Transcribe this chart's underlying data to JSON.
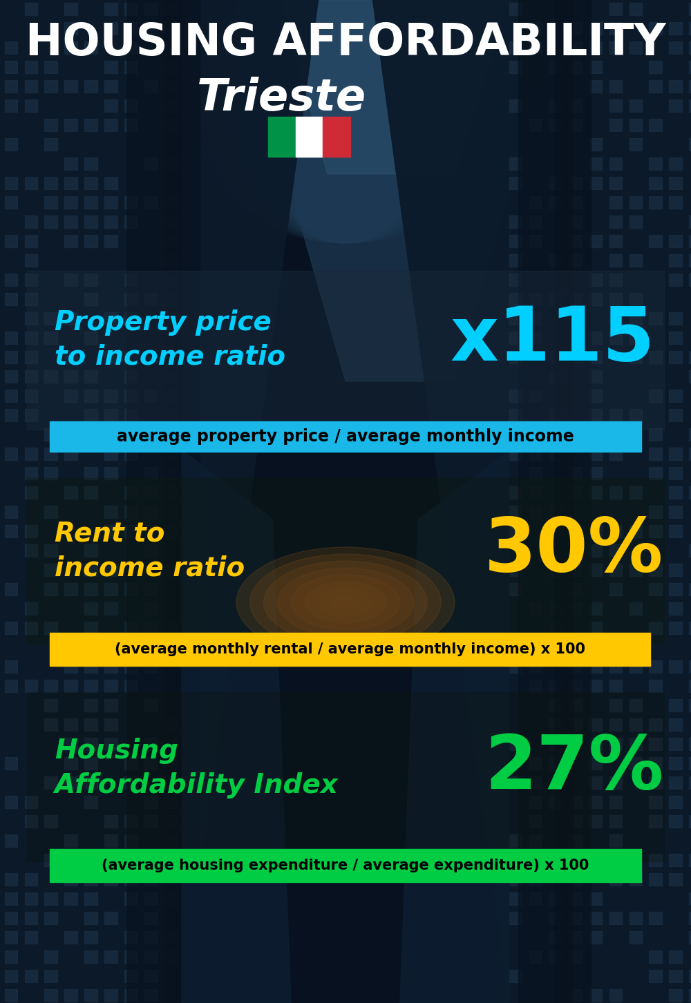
{
  "title_line1": "HOUSING AFFORDABILITY",
  "title_line2": "Trieste",
  "bg_color": "#080e18",
  "section1_label_line1": "Property price",
  "section1_label_line2": "to income ratio",
  "section1_value": "x115",
  "section1_label_color": "#00cfff",
  "section1_value_color": "#00cfff",
  "section1_subtitle": "average property price / average monthly income",
  "section1_subtitle_bg": "#1ab8e8",
  "section2_label_line1": "Rent to",
  "section2_label_line2": "income ratio",
  "section2_value": "30%",
  "section2_label_color": "#ffc800",
  "section2_value_color": "#ffc800",
  "section2_subtitle": "(average monthly rental / average monthly income) x 100",
  "section2_subtitle_bg": "#ffc800",
  "section3_label_line1": "Housing",
  "section3_label_line2": "Affordability Index",
  "section3_value": "27%",
  "section3_label_color": "#00cc44",
  "section3_value_color": "#00cc44",
  "section3_subtitle": "(average housing expenditure / average expenditure) x 100",
  "section3_subtitle_bg": "#00cc44",
  "flag_green": "#009246",
  "flag_white": "#ffffff",
  "flag_red": "#ce2b37",
  "panel1_alpha": 0.45,
  "panel2_alpha": 0.35,
  "panel3_alpha": 0.3
}
